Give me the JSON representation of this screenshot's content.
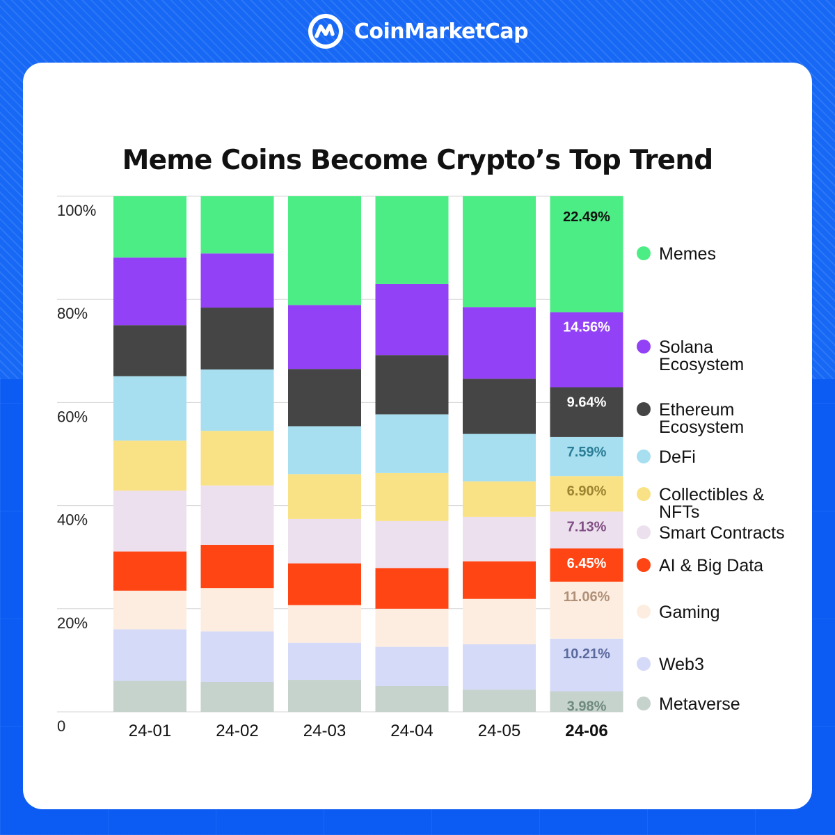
{
  "brand": {
    "name": "CoinMarketCap",
    "logo_icon": "coinmarketcap-logo-icon"
  },
  "colors": {
    "background": "#0f5ef6",
    "card": "#ffffff"
  },
  "chart_data": {
    "type": "bar",
    "stacked": true,
    "title": "Meme Coins Become Crypto’s Top Trend",
    "categories": [
      "24-01",
      "24-02",
      "24-03",
      "24-04",
      "24-05",
      "24-06"
    ],
    "highlight_category": "24-06",
    "ylim": [
      0,
      100
    ],
    "y_ticks": [
      "0",
      "20%",
      "40%",
      "60%",
      "80%",
      "100%"
    ],
    "grid": "horizontal",
    "legend_position": "right",
    "series": [
      {
        "name": "Metaverse",
        "color": "#c6d2cc",
        "label_color": "#6f8a7f",
        "values": [
          6.0,
          5.8,
          6.2,
          5.0,
          4.3,
          3.98
        ]
      },
      {
        "name": "Web3",
        "color": "#d5daf8",
        "label_color": "#5b6a9e",
        "values": [
          10.0,
          9.8,
          7.2,
          7.6,
          8.8,
          10.21
        ]
      },
      {
        "name": "Gaming",
        "color": "#fdede0",
        "label_color": "#b09078",
        "values": [
          7.5,
          8.4,
          7.3,
          7.4,
          8.8,
          11.06
        ]
      },
      {
        "name": "AI & Big Data",
        "color": "#ff4514",
        "label_color": "#ffffff",
        "values": [
          7.6,
          8.4,
          8.1,
          7.9,
          7.3,
          6.45
        ]
      },
      {
        "name": "Smart Contracts",
        "color": "#ede0ee",
        "label_color": "#7f4d84",
        "values": [
          11.8,
          11.5,
          8.6,
          9.1,
          8.6,
          7.13
        ]
      },
      {
        "name": "Collectibles & NFTs",
        "color": "#f9e286",
        "label_color": "#9c8330",
        "values": [
          9.7,
          10.6,
          8.7,
          9.3,
          6.9,
          6.9
        ]
      },
      {
        "name": "DeFi",
        "color": "#a7dff0",
        "label_color": "#2a7d96",
        "values": [
          12.5,
          11.9,
          9.3,
          11.4,
          9.2,
          7.59
        ]
      },
      {
        "name": "Ethereum Ecosystem",
        "color": "#454545",
        "label_color": "#ffffff",
        "values": [
          9.9,
          12.0,
          11.1,
          11.5,
          10.7,
          9.64
        ]
      },
      {
        "name": "Solana Ecosystem",
        "color": "#9241f6",
        "label_color": "#ffffff",
        "values": [
          13.1,
          10.5,
          12.4,
          13.8,
          13.9,
          14.56
        ]
      },
      {
        "name": "Memes",
        "color": "#4ded86",
        "label_color": "#111111",
        "values": [
          11.9,
          11.1,
          21.1,
          17.0,
          21.5,
          22.49
        ]
      }
    ],
    "data_labels": {
      "24-06": [
        "3.98%",
        "10.21%",
        "11.06%",
        "6.45%",
        "7.13%",
        "6.90%",
        "7.59%",
        "9.64%",
        "14.56%",
        "22.49%"
      ]
    },
    "legend": [
      {
        "text": "Memes",
        "series": "Memes"
      },
      {
        "text": "Solana\nEcosystem",
        "series": "Solana Ecosystem"
      },
      {
        "text": "Ethereum\nEcosystem",
        "series": "Ethereum Ecosystem"
      },
      {
        "text": "DeFi",
        "series": "DeFi"
      },
      {
        "text": "Collectibles &\nNFTs",
        "series": "Collectibles & NFTs"
      },
      {
        "text": "Smart Contracts",
        "series": "Smart Contracts"
      },
      {
        "text": "AI & Big Data",
        "series": "AI & Big Data"
      },
      {
        "text": "Gaming",
        "series": "Gaming"
      },
      {
        "text": "Web3",
        "series": "Web3"
      },
      {
        "text": "Metaverse",
        "series": "Metaverse"
      }
    ]
  }
}
